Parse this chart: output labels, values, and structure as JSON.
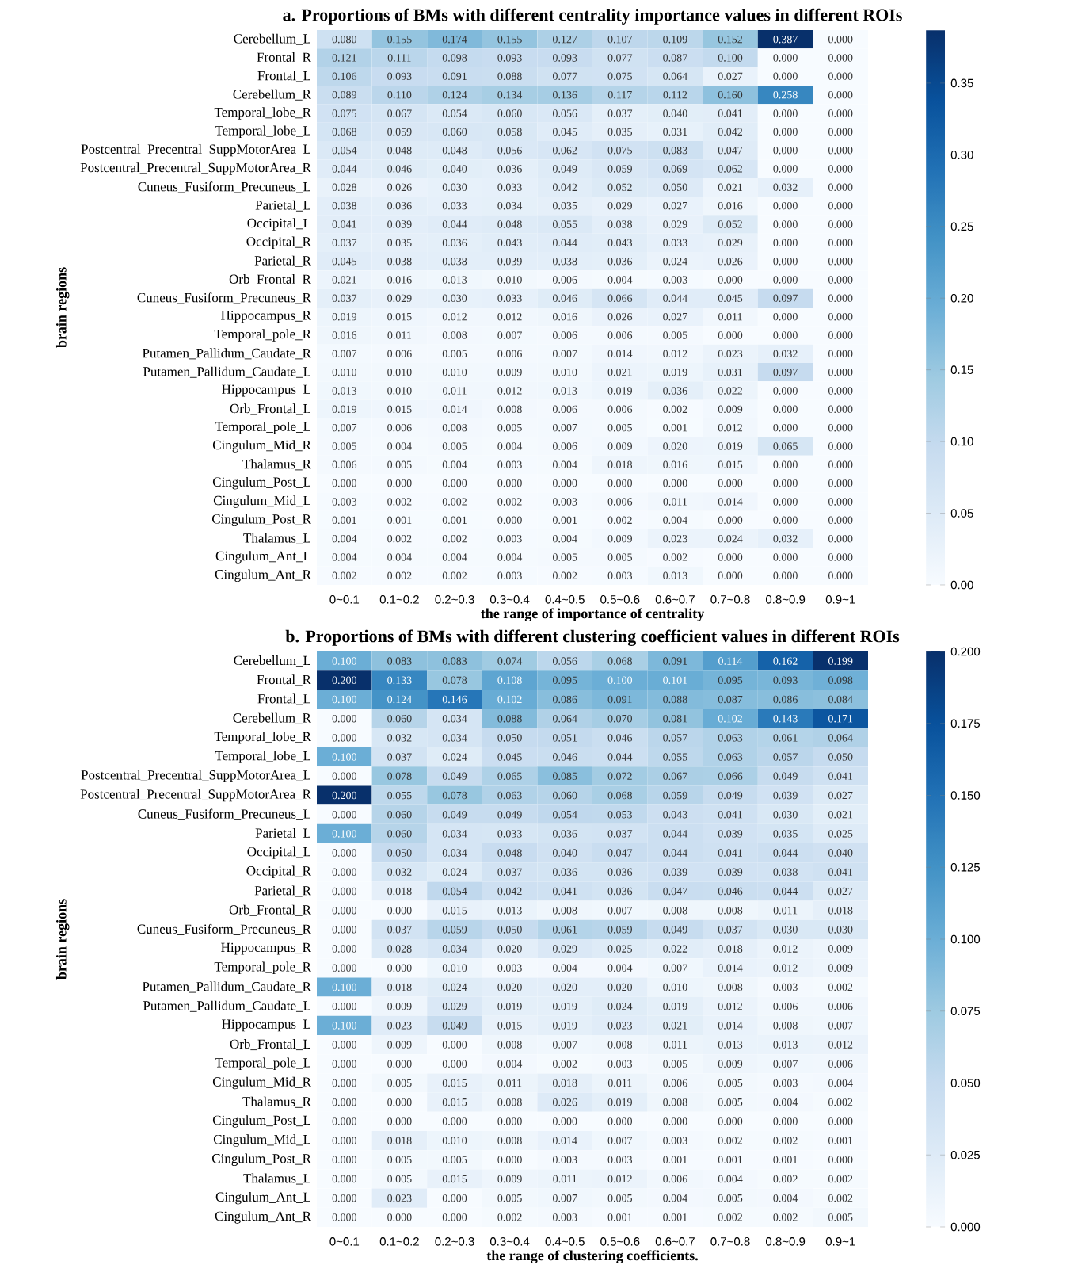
{
  "chart_data": [
    {
      "type": "heatmap",
      "title": "a.  Proportions of BMs with different centrality importance values in different ROIs",
      "xlabel": "the range of importance of centrality",
      "ylabel": "brain regions",
      "categories": [
        "0~0.1",
        "0.1~0.2",
        "0.2~0.3",
        "0.3~0.4",
        "0.4~0.5",
        "0.5~0.6",
        "0.6~0.7",
        "0.7~0.8",
        "0.8~0.9",
        "0.9~1"
      ],
      "y_categories": [
        "Cerebellum_L",
        "Frontal_R",
        "Frontal_L",
        "Cerebellum_R",
        "Temporal_lobe_R",
        "Temporal_lobe_L",
        "Postcentral_Precentral_SuppMotorArea_L",
        "Postcentral_Precentral_SuppMotorArea_R",
        "Cuneus_Fusiform_Precuneus_L",
        "Parietal_L",
        "Occipital_L",
        "Occipital_R",
        "Parietal_R",
        "Orb_Frontal_R",
        "Cuneus_Fusiform_Precuneus_R",
        "Hippocampus_R",
        "Temporal_pole_R",
        "Putamen_Pallidum_Caudate_R",
        "Putamen_Pallidum_Caudate_L",
        "Hippocampus_L",
        "Orb_Frontal_L",
        "Temporal_pole_L",
        "Cingulum_Mid_R",
        "Thalamus_R",
        "Cingulum_Post_L",
        "Cingulum_Mid_L",
        "Cingulum_Post_R",
        "Thalamus_L",
        "Cingulum_Ant_L",
        "Cingulum_Ant_R"
      ],
      "cells": [
        [
          0.08,
          0.155,
          0.174,
          0.155,
          0.127,
          0.107,
          0.109,
          0.152,
          0.387,
          0.0
        ],
        [
          0.121,
          0.111,
          0.098,
          0.093,
          0.093,
          0.077,
          0.087,
          0.1,
          0.0,
          0.0
        ],
        [
          0.106,
          0.093,
          0.091,
          0.088,
          0.077,
          0.075,
          0.064,
          0.027,
          0.0,
          0.0
        ],
        [
          0.089,
          0.11,
          0.124,
          0.134,
          0.136,
          0.117,
          0.112,
          0.16,
          0.258,
          0.0
        ],
        [
          0.075,
          0.067,
          0.054,
          0.06,
          0.056,
          0.037,
          0.04,
          0.041,
          0.0,
          0.0
        ],
        [
          0.068,
          0.059,
          0.06,
          0.058,
          0.045,
          0.035,
          0.031,
          0.042,
          0.0,
          0.0
        ],
        [
          0.054,
          0.048,
          0.048,
          0.056,
          0.062,
          0.075,
          0.083,
          0.047,
          0.0,
          0.0
        ],
        [
          0.044,
          0.046,
          0.04,
          0.036,
          0.049,
          0.059,
          0.069,
          0.062,
          0.0,
          0.0
        ],
        [
          0.028,
          0.026,
          0.03,
          0.033,
          0.042,
          0.052,
          0.05,
          0.021,
          0.032,
          0.0
        ],
        [
          0.038,
          0.036,
          0.033,
          0.034,
          0.035,
          0.029,
          0.027,
          0.016,
          0.0,
          0.0
        ],
        [
          0.041,
          0.039,
          0.044,
          0.048,
          0.055,
          0.038,
          0.029,
          0.052,
          0.0,
          0.0
        ],
        [
          0.037,
          0.035,
          0.036,
          0.043,
          0.044,
          0.043,
          0.033,
          0.029,
          0.0,
          0.0
        ],
        [
          0.045,
          0.038,
          0.038,
          0.039,
          0.038,
          0.036,
          0.024,
          0.026,
          0.0,
          0.0
        ],
        [
          0.021,
          0.016,
          0.013,
          0.01,
          0.006,
          0.004,
          0.003,
          0.0,
          0.0,
          0.0
        ],
        [
          0.037,
          0.029,
          0.03,
          0.033,
          0.046,
          0.066,
          0.044,
          0.045,
          0.097,
          0.0
        ],
        [
          0.019,
          0.015,
          0.012,
          0.012,
          0.016,
          0.026,
          0.027,
          0.011,
          0.0,
          0.0
        ],
        [
          0.016,
          0.011,
          0.008,
          0.007,
          0.006,
          0.006,
          0.005,
          0.0,
          0.0,
          0.0
        ],
        [
          0.007,
          0.006,
          0.005,
          0.006,
          0.007,
          0.014,
          0.012,
          0.023,
          0.032,
          0.0
        ],
        [
          0.01,
          0.01,
          0.01,
          0.009,
          0.01,
          0.021,
          0.019,
          0.031,
          0.097,
          0.0
        ],
        [
          0.013,
          0.01,
          0.011,
          0.012,
          0.013,
          0.019,
          0.036,
          0.022,
          0.0,
          0.0
        ],
        [
          0.019,
          0.015,
          0.014,
          0.008,
          0.006,
          0.006,
          0.002,
          0.009,
          0.0,
          0.0
        ],
        [
          0.007,
          0.006,
          0.008,
          0.005,
          0.007,
          0.005,
          0.001,
          0.012,
          0.0,
          0.0
        ],
        [
          0.005,
          0.004,
          0.005,
          0.004,
          0.006,
          0.009,
          0.02,
          0.019,
          0.065,
          0.0
        ],
        [
          0.006,
          0.005,
          0.004,
          0.003,
          0.004,
          0.018,
          0.016,
          0.015,
          0.0,
          0.0
        ],
        [
          0.0,
          0.0,
          0.0,
          0.0,
          0.0,
          0.0,
          0.0,
          0.0,
          0.0,
          0.0
        ],
        [
          0.003,
          0.002,
          0.002,
          0.002,
          0.003,
          0.006,
          0.011,
          0.014,
          0.0,
          0.0
        ],
        [
          0.001,
          0.001,
          0.001,
          0.0,
          0.001,
          0.002,
          0.004,
          0.0,
          0.0,
          0.0
        ],
        [
          0.004,
          0.002,
          0.002,
          0.003,
          0.004,
          0.009,
          0.023,
          0.024,
          0.032,
          0.0
        ],
        [
          0.004,
          0.004,
          0.004,
          0.004,
          0.005,
          0.005,
          0.002,
          0.0,
          0.0,
          0.0
        ],
        [
          0.002,
          0.002,
          0.002,
          0.003,
          0.002,
          0.003,
          0.013,
          0.0,
          0.0,
          0.0
        ]
      ],
      "cell_labels": [
        [
          "0.080",
          "0.155",
          "0.174",
          "0.155",
          "0.127",
          "0.107",
          "0.109",
          "0.152",
          "0.387",
          "0.000"
        ],
        [
          "0.121",
          "0.111",
          "0.098",
          "0.093",
          "0.093",
          "0.077",
          "0.087",
          "0.100",
          "0.000",
          "0.000"
        ],
        [
          "0.106",
          "0.093",
          "0.091",
          "0.088",
          "0.077",
          "0.075",
          "0.064",
          "0.027",
          "0.000",
          "0.000"
        ],
        [
          "0.089",
          "0.110",
          "0.124",
          "0.134",
          "0.136",
          "0.117",
          "0.112",
          "0.160",
          "0.258",
          "0.000"
        ],
        [
          "0.075",
          "0.067",
          "0.054",
          "0.060",
          "0.056",
          "0.037",
          "0.040",
          "0.041",
          "0.000",
          "0.000"
        ],
        [
          "0.068",
          "0.059",
          "0.060",
          "0.058",
          "0.045",
          "0.035",
          "0.031",
          "0.042",
          "0.000",
          "0.000"
        ],
        [
          "0.054",
          "0.048",
          "0.048",
          "0.056",
          "0.062",
          "0.075",
          "0.083",
          "0.047",
          "0.000",
          "0.000"
        ],
        [
          "0.044",
          "0.046",
          "0.040",
          "0.036",
          "0.049",
          "0.059",
          "0.069",
          "0.062",
          "0.000",
          "0.000"
        ],
        [
          "0.028",
          "0.026",
          "0.030",
          "0.033",
          "0.042",
          "0.052",
          "0.050",
          "0.021",
          "0.032",
          "0.000"
        ],
        [
          "0.038",
          "0.036",
          "0.033",
          "0.034",
          "0.035",
          "0.029",
          "0.027",
          "0.016",
          "0.000",
          "0.000"
        ],
        [
          "0.041",
          "0.039",
          "0.044",
          "0.048",
          "0.055",
          "0.038",
          "0.029",
          "0.052",
          "0.000",
          "0.000"
        ],
        [
          "0.037",
          "0.035",
          "0.036",
          "0.043",
          "0.044",
          "0.043",
          "0.033",
          "0.029",
          "0.000",
          "0.000"
        ],
        [
          "0.045",
          "0.038",
          "0.038",
          "0.039",
          "0.038",
          "0.036",
          "0.024",
          "0.026",
          "0.000",
          "0.000"
        ],
        [
          "0.021",
          "0.016",
          "0.013",
          "0.010",
          "0.006",
          "0.004",
          "0.003",
          "0.000",
          "0.000",
          "0.000"
        ],
        [
          "0.037",
          "0.029",
          "0.030",
          "0.033",
          "0.046",
          "0.066",
          "0.044",
          "0.045",
          "0.097",
          "0.000"
        ],
        [
          "0.019",
          "0.015",
          "0.012",
          "0.012",
          "0.016",
          "0.026",
          "0.027",
          "0.011",
          "0.000",
          "0.000"
        ],
        [
          "0.016",
          "0.011",
          "0.008",
          "0.007",
          "0.006",
          "0.006",
          "0.005",
          "0.000",
          "0.000",
          "0.000"
        ],
        [
          "0.007",
          "0.006",
          "0.005",
          "0.006",
          "0.007",
          "0.014",
          "0.012",
          "0.023",
          "0.032",
          "0.000"
        ],
        [
          "0.010",
          "0.010",
          "0.010",
          "0.009",
          "0.010",
          "0.021",
          "0.019",
          "0.031",
          "0.097",
          "0.000"
        ],
        [
          "0.013",
          "0.010",
          "0.011",
          "0.012",
          "0.013",
          "0.019",
          "0.036",
          "0.022",
          "0.000",
          "0.000"
        ],
        [
          "0.019",
          "0.015",
          "0.014",
          "0.008",
          "0.006",
          "0.006",
          "0.002",
          "0.009",
          "0.000",
          "0.000"
        ],
        [
          "0.007",
          "0.006",
          "0.008",
          "0.005",
          "0.007",
          "0.005",
          "0.001",
          "0.012",
          "0.000",
          "0.000"
        ],
        [
          "0.005",
          "0.004",
          "0.005",
          "0.004",
          "0.006",
          "0.009",
          "0.020",
          "0.019",
          "0.065",
          "0.000"
        ],
        [
          "0.006",
          "0.005",
          "0.004",
          "0.003",
          "0.004",
          "0.018",
          "0.016",
          "0.015",
          "0.000",
          "0.000"
        ],
        [
          "0.000",
          "0.000",
          "0.000",
          "0.000",
          "0.000",
          "0.000",
          "0.000",
          "0.000",
          "0.000",
          "0.000"
        ],
        [
          "0.003",
          "0.002",
          "0.002",
          "0.002",
          "0.003",
          "0.006",
          "0.011",
          "0.014",
          "0.000",
          "0.000"
        ],
        [
          "0.001",
          "0.001",
          "0.001",
          "0.000",
          "0.001",
          "0.002",
          "0.004",
          "0.000",
          "0.000",
          "0.000"
        ],
        [
          "0.004",
          "0.002",
          "0.002",
          "0.003",
          "0.004",
          "0.009",
          "0.023",
          "0.024",
          "0.032",
          "0.000"
        ],
        [
          "0.004",
          "0.004",
          "0.004",
          "0.004",
          "0.005",
          "0.005",
          "0.002",
          "0.000",
          "0.000",
          "0.000"
        ],
        [
          "0.002",
          "0.002",
          "0.002",
          "0.003",
          "0.002",
          "0.003",
          "0.013",
          "0.000",
          "0.000",
          "0.000"
        ]
      ],
      "clim": [
        0,
        0.387
      ],
      "cticks": [
        {
          "value": 0,
          "label": "0.00"
        },
        0.05,
        {
          "value": 0.1,
          "label": "0.10"
        },
        0.15,
        {
          "value": 0.2,
          "label": "0.20"
        },
        0.25,
        {
          "value": 0.3,
          "label": "0.30"
        },
        0.35
      ]
    },
    {
      "type": "heatmap",
      "title": "b.  Proportions of BMs with different clustering coefficient values in different ROIs",
      "xlabel": "the range of clustering coefficients.",
      "ylabel": "brain regions",
      "categories": [
        "0~0.1",
        "0.1~0.2",
        "0.2~0.3",
        "0.3~0.4",
        "0.4~0.5",
        "0.5~0.6",
        "0.6~0.7",
        "0.7~0.8",
        "0.8~0.9",
        "0.9~1"
      ],
      "y_categories": [
        "Cerebellum_L",
        "Frontal_R",
        "Frontal_L",
        "Cerebellum_R",
        "Temporal_lobe_R",
        "Temporal_lobe_L",
        "Postcentral_Precentral_SuppMotorArea_L",
        "Postcentral_Precentral_SuppMotorArea_R",
        "Cuneus_Fusiform_Precuneus_L",
        "Parietal_L",
        "Occipital_L",
        "Occipital_R",
        "Parietal_R",
        "Orb_Frontal_R",
        "Cuneus_Fusiform_Precuneus_R",
        "Hippocampus_R",
        "Temporal_pole_R",
        "Putamen_Pallidum_Caudate_R",
        "Putamen_Pallidum_Caudate_L",
        "Hippocampus_L",
        "Orb_Frontal_L",
        "Temporal_pole_L",
        "Cingulum_Mid_R",
        "Thalamus_R",
        "Cingulum_Post_L",
        "Cingulum_Mid_L",
        "Cingulum_Post_R",
        "Thalamus_L",
        "Cingulum_Ant_L",
        "Cingulum_Ant_R"
      ],
      "cells": [
        [
          0.1,
          0.083,
          0.083,
          0.074,
          0.056,
          0.068,
          0.091,
          0.114,
          0.162,
          0.199
        ],
        [
          0.2,
          0.133,
          0.078,
          0.108,
          0.095,
          0.1,
          0.101,
          0.095,
          0.093,
          0.098
        ],
        [
          0.1,
          0.124,
          0.146,
          0.102,
          0.086,
          0.091,
          0.088,
          0.087,
          0.086,
          0.084
        ],
        [
          0.0,
          0.06,
          0.034,
          0.088,
          0.064,
          0.07,
          0.081,
          0.102,
          0.143,
          0.171
        ],
        [
          0.0,
          0.032,
          0.034,
          0.05,
          0.051,
          0.046,
          0.057,
          0.063,
          0.061,
          0.064
        ],
        [
          0.1,
          0.037,
          0.024,
          0.045,
          0.046,
          0.044,
          0.055,
          0.063,
          0.057,
          0.05
        ],
        [
          0.0,
          0.078,
          0.049,
          0.065,
          0.085,
          0.072,
          0.067,
          0.066,
          0.049,
          0.041
        ],
        [
          0.2,
          0.055,
          0.078,
          0.063,
          0.06,
          0.068,
          0.059,
          0.049,
          0.039,
          0.027
        ],
        [
          0.0,
          0.06,
          0.049,
          0.049,
          0.054,
          0.053,
          0.043,
          0.041,
          0.03,
          0.021
        ],
        [
          0.1,
          0.06,
          0.034,
          0.033,
          0.036,
          0.037,
          0.044,
          0.039,
          0.035,
          0.025
        ],
        [
          0.0,
          0.05,
          0.034,
          0.048,
          0.04,
          0.047,
          0.044,
          0.041,
          0.044,
          0.04
        ],
        [
          0.0,
          0.032,
          0.024,
          0.037,
          0.036,
          0.036,
          0.039,
          0.039,
          0.038,
          0.041
        ],
        [
          0.0,
          0.018,
          0.054,
          0.042,
          0.041,
          0.036,
          0.047,
          0.046,
          0.044,
          0.027
        ],
        [
          0.0,
          0.0,
          0.015,
          0.013,
          0.008,
          0.007,
          0.008,
          0.008,
          0.011,
          0.018
        ],
        [
          0.0,
          0.037,
          0.059,
          0.05,
          0.061,
          0.059,
          0.049,
          0.037,
          0.03,
          0.03
        ],
        [
          0.0,
          0.028,
          0.034,
          0.02,
          0.029,
          0.025,
          0.022,
          0.018,
          0.012,
          0.009
        ],
        [
          0.0,
          0.0,
          0.01,
          0.003,
          0.004,
          0.004,
          0.007,
          0.014,
          0.012,
          0.009
        ],
        [
          0.1,
          0.018,
          0.024,
          0.02,
          0.02,
          0.02,
          0.01,
          0.008,
          0.003,
          0.002
        ],
        [
          0.0,
          0.009,
          0.029,
          0.019,
          0.019,
          0.024,
          0.019,
          0.012,
          0.006,
          0.006
        ],
        [
          0.1,
          0.023,
          0.049,
          0.015,
          0.019,
          0.023,
          0.021,
          0.014,
          0.008,
          0.007
        ],
        [
          0.0,
          0.009,
          0.0,
          0.008,
          0.007,
          0.008,
          0.011,
          0.013,
          0.013,
          0.012
        ],
        [
          0.0,
          0.0,
          0.0,
          0.004,
          0.002,
          0.003,
          0.005,
          0.009,
          0.007,
          0.006
        ],
        [
          0.0,
          0.005,
          0.015,
          0.011,
          0.018,
          0.011,
          0.006,
          0.005,
          0.003,
          0.004
        ],
        [
          0.0,
          0.0,
          0.015,
          0.008,
          0.026,
          0.019,
          0.008,
          0.005,
          0.004,
          0.002
        ],
        [
          0.0,
          0.0,
          0.0,
          0.0,
          0.0,
          0.0,
          0.0,
          0.0,
          0.0,
          0.0
        ],
        [
          0.0,
          0.018,
          0.01,
          0.008,
          0.014,
          0.007,
          0.003,
          0.002,
          0.002,
          0.001
        ],
        [
          0.0,
          0.005,
          0.005,
          0.0,
          0.003,
          0.003,
          0.001,
          0.001,
          0.001,
          0.0
        ],
        [
          0.0,
          0.005,
          0.015,
          0.009,
          0.011,
          0.012,
          0.006,
          0.004,
          0.002,
          0.002
        ],
        [
          0.0,
          0.023,
          0.0,
          0.005,
          0.007,
          0.005,
          0.004,
          0.005,
          0.004,
          0.002
        ],
        [
          0.0,
          0.0,
          0.0,
          0.002,
          0.003,
          0.001,
          0.001,
          0.002,
          0.002,
          0.005
        ]
      ],
      "cell_labels": [
        [
          "0.100",
          "0.083",
          "0.083",
          "0.074",
          "0.056",
          "0.068",
          "0.091",
          "0.114",
          "0.162",
          "0.199"
        ],
        [
          "0.200",
          "0.133",
          "0.078",
          "0.108",
          "0.095",
          "0.100",
          "0.101",
          "0.095",
          "0.093",
          "0.098"
        ],
        [
          "0.100",
          "0.124",
          "0.146",
          "0.102",
          "0.086",
          "0.091",
          "0.088",
          "0.087",
          "0.086",
          "0.084"
        ],
        [
          "0.000",
          "0.060",
          "0.034",
          "0.088",
          "0.064",
          "0.070",
          "0.081",
          "0.102",
          "0.143",
          "0.171"
        ],
        [
          "0.000",
          "0.032",
          "0.034",
          "0.050",
          "0.051",
          "0.046",
          "0.057",
          "0.063",
          "0.061",
          "0.064"
        ],
        [
          "0.100",
          "0.037",
          "0.024",
          "0.045",
          "0.046",
          "0.044",
          "0.055",
          "0.063",
          "0.057",
          "0.050"
        ],
        [
          "0.000",
          "0.078",
          "0.049",
          "0.065",
          "0.085",
          "0.072",
          "0.067",
          "0.066",
          "0.049",
          "0.041"
        ],
        [
          "0.200",
          "0.055",
          "0.078",
          "0.063",
          "0.060",
          "0.068",
          "0.059",
          "0.049",
          "0.039",
          "0.027"
        ],
        [
          "0.000",
          "0.060",
          "0.049",
          "0.049",
          "0.054",
          "0.053",
          "0.043",
          "0.041",
          "0.030",
          "0.021"
        ],
        [
          "0.100",
          "0.060",
          "0.034",
          "0.033",
          "0.036",
          "0.037",
          "0.044",
          "0.039",
          "0.035",
          "0.025"
        ],
        [
          "0.000",
          "0.050",
          "0.034",
          "0.048",
          "0.040",
          "0.047",
          "0.044",
          "0.041",
          "0.044",
          "0.040"
        ],
        [
          "0.000",
          "0.032",
          "0.024",
          "0.037",
          "0.036",
          "0.036",
          "0.039",
          "0.039",
          "0.038",
          "0.041"
        ],
        [
          "0.000",
          "0.018",
          "0.054",
          "0.042",
          "0.041",
          "0.036",
          "0.047",
          "0.046",
          "0.044",
          "0.027"
        ],
        [
          "0.000",
          "0.000",
          "0.015",
          "0.013",
          "0.008",
          "0.007",
          "0.008",
          "0.008",
          "0.011",
          "0.018"
        ],
        [
          "0.000",
          "0.037",
          "0.059",
          "0.050",
          "0.061",
          "0.059",
          "0.049",
          "0.037",
          "0.030",
          "0.030"
        ],
        [
          "0.000",
          "0.028",
          "0.034",
          "0.020",
          "0.029",
          "0.025",
          "0.022",
          "0.018",
          "0.012",
          "0.009"
        ],
        [
          "0.000",
          "0.000",
          "0.010",
          "0.003",
          "0.004",
          "0.004",
          "0.007",
          "0.014",
          "0.012",
          "0.009"
        ],
        [
          "0.100",
          "0.018",
          "0.024",
          "0.020",
          "0.020",
          "0.020",
          "0.010",
          "0.008",
          "0.003",
          "0.002"
        ],
        [
          "0.000",
          "0.009",
          "0.029",
          "0.019",
          "0.019",
          "0.024",
          "0.019",
          "0.012",
          "0.006",
          "0.006"
        ],
        [
          "0.100",
          "0.023",
          "0.049",
          "0.015",
          "0.019",
          "0.023",
          "0.021",
          "0.014",
          "0.008",
          "0.007"
        ],
        [
          "0.000",
          "0.009",
          "0.000",
          "0.008",
          "0.007",
          "0.008",
          "0.011",
          "0.013",
          "0.013",
          "0.012"
        ],
        [
          "0.000",
          "0.000",
          "0.000",
          "0.004",
          "0.002",
          "0.003",
          "0.005",
          "0.009",
          "0.007",
          "0.006"
        ],
        [
          "0.000",
          "0.005",
          "0.015",
          "0.011",
          "0.018",
          "0.011",
          "0.006",
          "0.005",
          "0.003",
          "0.004"
        ],
        [
          "0.000",
          "0.000",
          "0.015",
          "0.008",
          "0.026",
          "0.019",
          "0.008",
          "0.005",
          "0.004",
          "0.002"
        ],
        [
          "0.000",
          "0.000",
          "0.000",
          "0.000",
          "0.000",
          "0.000",
          "0.000",
          "0.000",
          "0.000",
          "0.000"
        ],
        [
          "0.000",
          "0.018",
          "0.010",
          "0.008",
          "0.014",
          "0.007",
          "0.003",
          "0.002",
          "0.002",
          "0.001"
        ],
        [
          "0.000",
          "0.005",
          "0.005",
          "0.000",
          "0.003",
          "0.003",
          "0.001",
          "0.001",
          "0.001",
          "0.000"
        ],
        [
          "0.000",
          "0.005",
          "0.015",
          "0.009",
          "0.011",
          "0.012",
          "0.006",
          "0.004",
          "0.002",
          "0.002"
        ],
        [
          "0.000",
          "0.023",
          "0.000",
          "0.005",
          "0.007",
          "0.005",
          "0.004",
          "0.005",
          "0.004",
          "0.002"
        ],
        [
          "0.000",
          "0.000",
          "0.000",
          "0.002",
          "0.003",
          "0.001",
          "0.001",
          "0.002",
          "0.002",
          "0.005"
        ]
      ],
      "clim": [
        0,
        0.2
      ],
      "cticks": [
        {
          "value": 0,
          "label": "0.000"
        },
        0.025,
        {
          "value": 0.05,
          "label": "0.050"
        },
        0.075,
        {
          "value": 0.1,
          "label": "0.100"
        },
        0.125,
        {
          "value": 0.15,
          "label": "0.150"
        },
        0.175,
        {
          "value": 0.2,
          "label": "0.200"
        }
      ]
    }
  ]
}
